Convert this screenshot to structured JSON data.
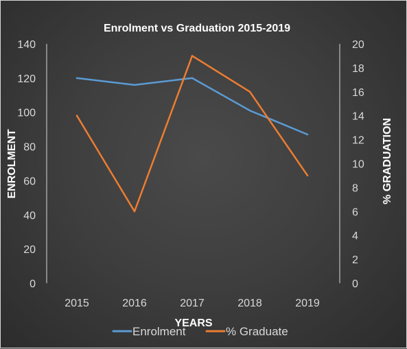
{
  "chart_data": {
    "type": "line",
    "title": "Enrolment vs Graduation 2015-2019",
    "xlabel": "YEARS",
    "ylabel": "ENROLMENT",
    "y2label": "% GRADUATION",
    "categories": [
      "2015",
      "2016",
      "2017",
      "2018",
      "2019"
    ],
    "ylim": [
      0,
      140
    ],
    "yticks": [
      0,
      20,
      40,
      60,
      80,
      100,
      120,
      140
    ],
    "y2lim": [
      0,
      20
    ],
    "y2ticks": [
      0,
      2,
      4,
      6,
      8,
      10,
      12,
      14,
      16,
      18,
      20
    ],
    "grid": false,
    "legend_position": "bottom",
    "series": [
      {
        "name": "Enrolment",
        "axis": "left",
        "color": "#5b9bd5",
        "values": [
          120,
          116,
          120,
          101,
          87
        ]
      },
      {
        "name": "% Graduate",
        "axis": "right",
        "color": "#ed7d31",
        "values": [
          14,
          6,
          19,
          16,
          9
        ]
      }
    ]
  }
}
